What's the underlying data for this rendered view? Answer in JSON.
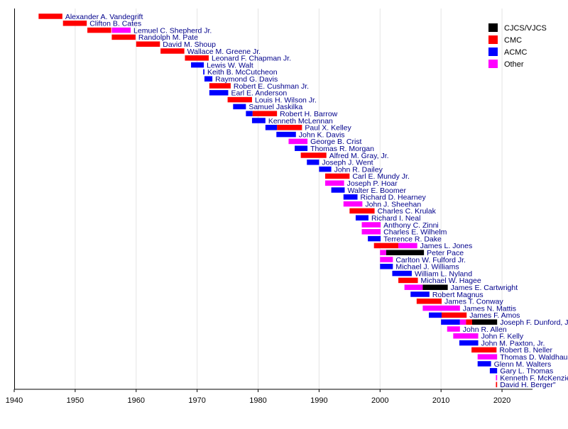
{
  "chart_data": {
    "type": "timeline",
    "title": "",
    "xlabel": "",
    "ylabel": "",
    "xlim": [
      1940,
      2025
    ],
    "x_ticks": [
      1940,
      1950,
      1960,
      1970,
      1980,
      1990,
      2000,
      2010,
      2020
    ],
    "grid": "vertical",
    "legend_position": "top-right",
    "legend": [
      {
        "key": "CJCS/VJCS",
        "label": "CJCS/VJCS",
        "color": "#000000"
      },
      {
        "key": "CMC",
        "label": "CMC",
        "color": "#ff0000"
      },
      {
        "key": "ACMC",
        "label": "ACMC",
        "color": "#0000ff"
      },
      {
        "key": "Other",
        "label": "Other",
        "color": "#ff00ff"
      }
    ],
    "people": [
      {
        "name": "Alexander A. Vandegrift",
        "terms": [
          {
            "role": "CMC",
            "start": 1944.0,
            "end": 1947.9
          }
        ]
      },
      {
        "name": "Clifton B. Cates",
        "terms": [
          {
            "role": "CMC",
            "start": 1948.0,
            "end": 1951.9
          }
        ]
      },
      {
        "name": "Lemuel C. Shepherd Jr.",
        "terms": [
          {
            "role": "CMC",
            "start": 1952.0,
            "end": 1955.9
          },
          {
            "role": "Other",
            "start": 1956.0,
            "end": 1959.1
          }
        ]
      },
      {
        "name": "Randolph M. Pate",
        "terms": [
          {
            "role": "CMC",
            "start": 1956.0,
            "end": 1959.9
          }
        ]
      },
      {
        "name": "David M. Shoup",
        "terms": [
          {
            "role": "CMC",
            "start": 1960.0,
            "end": 1963.9
          }
        ]
      },
      {
        "name": "Wallace M. Greene Jr.",
        "terms": [
          {
            "role": "CMC",
            "start": 1964.0,
            "end": 1967.9
          }
        ]
      },
      {
        "name": "Leonard F. Chapman Jr.",
        "terms": [
          {
            "role": "CMC",
            "start": 1968.0,
            "end": 1971.9
          }
        ]
      },
      {
        "name": "Lewis W. Walt",
        "terms": [
          {
            "role": "ACMC",
            "start": 1969.0,
            "end": 1971.1
          }
        ]
      },
      {
        "name": "Keith B. McCutcheon",
        "terms": [
          {
            "role": "ACMC",
            "start": 1971.0,
            "end": 1971.2
          }
        ]
      },
      {
        "name": "Raymond G. Davis",
        "terms": [
          {
            "role": "ACMC",
            "start": 1971.2,
            "end": 1972.5
          }
        ]
      },
      {
        "name": "Robert E. Cushman Jr.",
        "terms": [
          {
            "role": "CMC",
            "start": 1972.0,
            "end": 1975.5
          }
        ]
      },
      {
        "name": "Earl E. Anderson",
        "terms": [
          {
            "role": "ACMC",
            "start": 1972.0,
            "end": 1975.1
          }
        ]
      },
      {
        "name": "Louis H. Wilson Jr.",
        "terms": [
          {
            "role": "CMC",
            "start": 1975.0,
            "end": 1979.0
          }
        ]
      },
      {
        "name": "Samuel Jaskilka",
        "terms": [
          {
            "role": "ACMC",
            "start": 1975.9,
            "end": 1978.0
          }
        ]
      },
      {
        "name": "Robert H. Barrow",
        "terms": [
          {
            "role": "ACMC",
            "start": 1978.0,
            "end": 1979.1
          },
          {
            "role": "CMC",
            "start": 1979.1,
            "end": 1983.1
          }
        ]
      },
      {
        "name": "Kenneth McLennan",
        "terms": [
          {
            "role": "ACMC",
            "start": 1979.0,
            "end": 1981.2
          }
        ]
      },
      {
        "name": "Paul X. Kelley",
        "terms": [
          {
            "role": "ACMC",
            "start": 1981.2,
            "end": 1983.1
          },
          {
            "role": "CMC",
            "start": 1983.1,
            "end": 1987.2
          }
        ]
      },
      {
        "name": "John K. Davis",
        "terms": [
          {
            "role": "ACMC",
            "start": 1983.0,
            "end": 1986.2
          }
        ]
      },
      {
        "name": "George B. Crist",
        "terms": [
          {
            "role": "Other",
            "start": 1985.0,
            "end": 1988.1
          }
        ]
      },
      {
        "name": "Thomas R. Morgan",
        "terms": [
          {
            "role": "ACMC",
            "start": 1986.0,
            "end": 1988.1
          }
        ]
      },
      {
        "name": "Alfred M. Gray, Jr.",
        "terms": [
          {
            "role": "CMC",
            "start": 1987.0,
            "end": 1991.2
          }
        ]
      },
      {
        "name": "Joseph J. Went",
        "terms": [
          {
            "role": "ACMC",
            "start": 1988.0,
            "end": 1990.0
          }
        ]
      },
      {
        "name": "John R. Dailey",
        "terms": [
          {
            "role": "ACMC",
            "start": 1990.0,
            "end": 1992.0
          }
        ]
      },
      {
        "name": "Carl E. Mundy Jr.",
        "terms": [
          {
            "role": "CMC",
            "start": 1991.0,
            "end": 1995.0
          }
        ]
      },
      {
        "name": "Joseph P. Hoar",
        "terms": [
          {
            "role": "Other",
            "start": 1991.0,
            "end": 1994.1
          }
        ]
      },
      {
        "name": "Walter E. Boomer",
        "terms": [
          {
            "role": "ACMC",
            "start": 1992.0,
            "end": 1994.2
          }
        ]
      },
      {
        "name": "Richard D. Hearney",
        "terms": [
          {
            "role": "ACMC",
            "start": 1994.0,
            "end": 1996.3
          }
        ]
      },
      {
        "name": "John J. Sheehan",
        "terms": [
          {
            "role": "Other",
            "start": 1994.0,
            "end": 1997.1
          }
        ]
      },
      {
        "name": "Charles C. Krulak",
        "terms": [
          {
            "role": "CMC",
            "start": 1995.0,
            "end": 1999.1
          }
        ]
      },
      {
        "name": "Richard I. Neal",
        "terms": [
          {
            "role": "ACMC",
            "start": 1996.0,
            "end": 1998.1
          }
        ]
      },
      {
        "name": "Anthony C. Zinni",
        "terms": [
          {
            "role": "Other",
            "start": 1997.0,
            "end": 2000.1
          }
        ]
      },
      {
        "name": "Charles E. Wilhelm",
        "terms": [
          {
            "role": "Other",
            "start": 1997.0,
            "end": 2000.1
          }
        ]
      },
      {
        "name": "Terrence R. Dake",
        "terms": [
          {
            "role": "ACMC",
            "start": 1998.0,
            "end": 2000.1
          }
        ]
      },
      {
        "name": "James L. Jones",
        "terms": [
          {
            "role": "CMC",
            "start": 1999.0,
            "end": 2003.0
          },
          {
            "role": "Other",
            "start": 2003.0,
            "end": 2006.1
          }
        ]
      },
      {
        "name": "Peter Pace",
        "terms": [
          {
            "role": "Other",
            "start": 2000.0,
            "end": 2001.0
          },
          {
            "role": "CJCS/VJCS",
            "start": 2001.0,
            "end": 2007.2
          }
        ]
      },
      {
        "name": "Carlton W. Fulford Jr.",
        "terms": [
          {
            "role": "Other",
            "start": 2000.0,
            "end": 2002.1
          }
        ]
      },
      {
        "name": "Michael J. Williams",
        "terms": [
          {
            "role": "ACMC",
            "start": 2000.0,
            "end": 2002.1
          }
        ]
      },
      {
        "name": "William L. Nyland",
        "terms": [
          {
            "role": "ACMC",
            "start": 2002.0,
            "end": 2005.2
          }
        ]
      },
      {
        "name": "Michael W. Hagee",
        "terms": [
          {
            "role": "CMC",
            "start": 2003.0,
            "end": 2006.2
          }
        ]
      },
      {
        "name": "James E. Cartwright",
        "terms": [
          {
            "role": "Other",
            "start": 2004.0,
            "end": 2007.0
          },
          {
            "role": "CJCS/VJCS",
            "start": 2007.0,
            "end": 2011.1
          }
        ]
      },
      {
        "name": "Robert Magnus",
        "terms": [
          {
            "role": "ACMC",
            "start": 2005.0,
            "end": 2008.1
          }
        ]
      },
      {
        "name": "James T. Conway",
        "terms": [
          {
            "role": "CMC",
            "start": 2006.0,
            "end": 2010.1
          }
        ]
      },
      {
        "name": "James N. Mattis",
        "terms": [
          {
            "role": "Other",
            "start": 2007.0,
            "end": 2013.1
          }
        ]
      },
      {
        "name": "James F. Amos",
        "terms": [
          {
            "role": "ACMC",
            "start": 2008.0,
            "end": 2010.1
          },
          {
            "role": "CMC",
            "start": 2010.1,
            "end": 2014.2
          }
        ]
      },
      {
        "name": "Joseph F. Dunford, Jr.",
        "terms": [
          {
            "role": "ACMC",
            "start": 2010.0,
            "end": 2013.1
          },
          {
            "role": "Other",
            "start": 2013.1,
            "end": 2014.1
          },
          {
            "role": "CMC",
            "start": 2014.1,
            "end": 2015.1
          },
          {
            "role": "CJCS/VJCS",
            "start": 2015.1,
            "end": 2019.2
          }
        ]
      },
      {
        "name": "John R. Allen",
        "terms": [
          {
            "role": "Other",
            "start": 2011.0,
            "end": 2013.1
          }
        ]
      },
      {
        "name": "John F. Kelly",
        "terms": [
          {
            "role": "Other",
            "start": 2012.0,
            "end": 2016.1
          }
        ]
      },
      {
        "name": "John M. Paxton, Jr.",
        "terms": [
          {
            "role": "ACMC",
            "start": 2013.0,
            "end": 2016.1
          }
        ]
      },
      {
        "name": "Robert B. Neller",
        "terms": [
          {
            "role": "CMC",
            "start": 2015.0,
            "end": 2019.1
          }
        ]
      },
      {
        "name": "Thomas D. Waldhauser",
        "terms": [
          {
            "role": "Other",
            "start": 2016.0,
            "end": 2019.2
          }
        ]
      },
      {
        "name": "Glenn M. Walters",
        "terms": [
          {
            "role": "ACMC",
            "start": 2016.0,
            "end": 2018.2
          }
        ]
      },
      {
        "name": "Gary L. Thomas",
        "terms": [
          {
            "role": "ACMC",
            "start": 2018.0,
            "end": 2019.2
          }
        ]
      },
      {
        "name": "Kenneth F. McKenzie Jr.",
        "terms": [
          {
            "role": "Other",
            "start": 2019.0,
            "end": 2019.2
          }
        ]
      },
      {
        "name": "David H. Berger\"",
        "terms": [
          {
            "role": "CMC",
            "start": 2019.0,
            "end": 2019.2
          }
        ]
      }
    ]
  }
}
